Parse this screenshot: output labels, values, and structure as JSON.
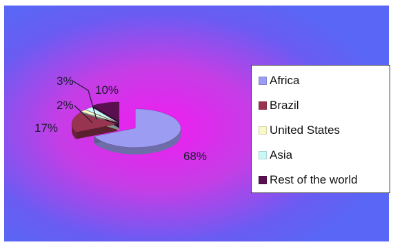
{
  "chart_data": {
    "type": "pie",
    "categories": [
      "Africa",
      "Brazil",
      "United States",
      "Asia",
      "Rest of the world"
    ],
    "values": [
      68,
      17,
      2,
      3,
      10
    ],
    "labels": [
      "68%",
      "17%",
      "2%",
      "3%",
      "10%"
    ],
    "colors": [
      "#9c9cf2",
      "#983450",
      "#f8f8c8",
      "#c8f8f8",
      "#5a1050"
    ],
    "title": "",
    "legend_position": "right",
    "style": "3d-exploded"
  }
}
